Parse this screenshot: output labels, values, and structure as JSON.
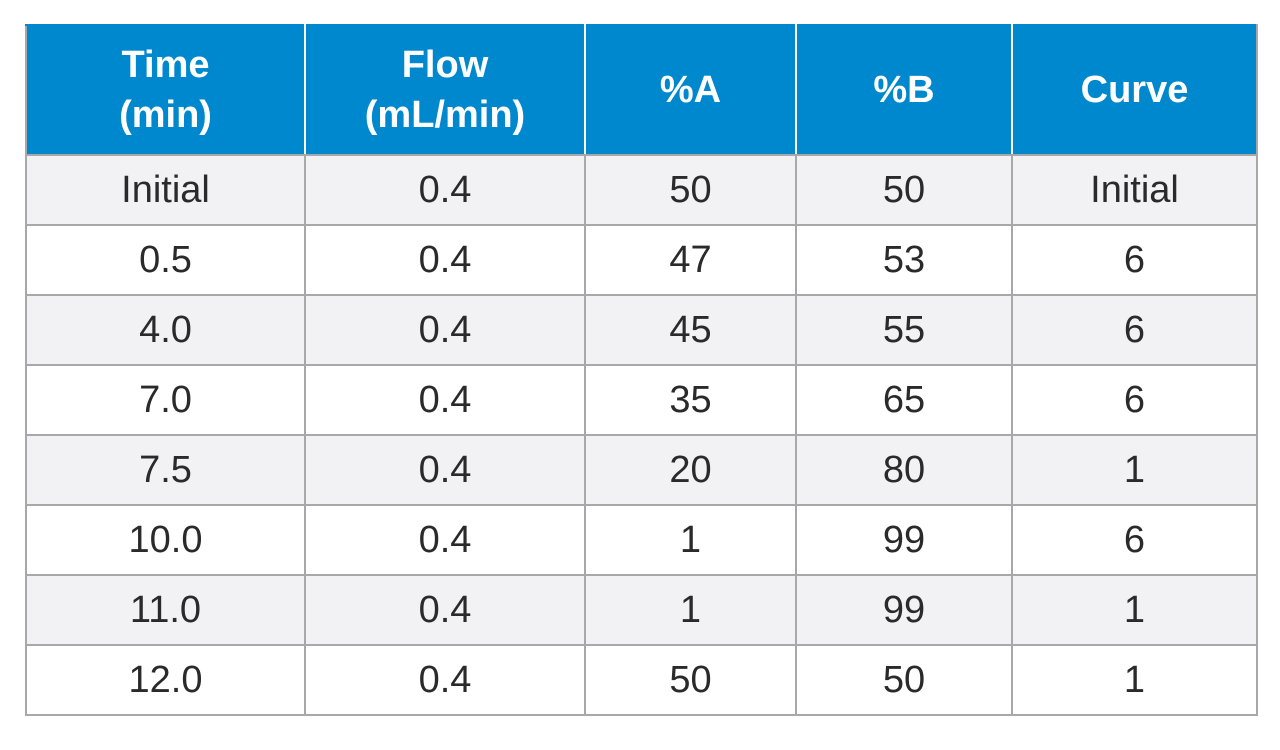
{
  "table": {
    "headers": [
      {
        "line1": "Time",
        "line2": "(min)"
      },
      {
        "line1": "Flow",
        "line2": "(mL/min)"
      },
      {
        "line1": "%A",
        "line2": ""
      },
      {
        "line1": "%B",
        "line2": ""
      },
      {
        "line1": "Curve",
        "line2": ""
      }
    ],
    "rows": [
      [
        "Initial",
        "0.4",
        "50",
        "50",
        "Initial"
      ],
      [
        "0.5",
        "0.4",
        "47",
        "53",
        "6"
      ],
      [
        "4.0",
        "0.4",
        "45",
        "55",
        "6"
      ],
      [
        "7.0",
        "0.4",
        "35",
        "65",
        "6"
      ],
      [
        "7.5",
        "0.4",
        "20",
        "80",
        "1"
      ],
      [
        "10.0",
        "0.4",
        "1",
        "99",
        "6"
      ],
      [
        "11.0",
        "0.4",
        "1",
        "99",
        "1"
      ],
      [
        "12.0",
        "0.4",
        "50",
        "50",
        "1"
      ]
    ]
  },
  "colors": {
    "header_bg": "#0088cf",
    "header_text": "#ffffff",
    "row_alt_bg": "#f2f2f4",
    "grid_line": "#a8a8ab"
  }
}
